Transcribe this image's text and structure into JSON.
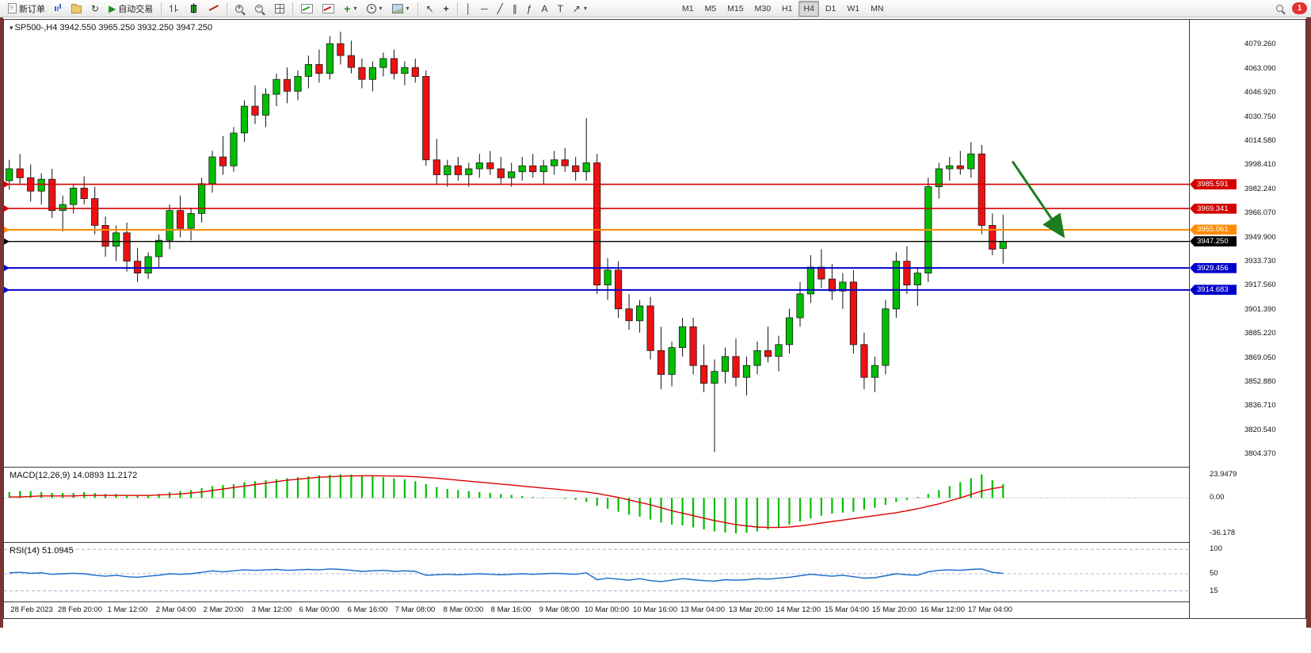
{
  "toolbar": {
    "new_order_label": "新订单",
    "auto_trading_label": "自动交易",
    "text_tool_label": "A",
    "label_tool_label": "T",
    "timeframes": [
      "M1",
      "M5",
      "M15",
      "M30",
      "H1",
      "H4",
      "D1",
      "W1",
      "MN"
    ],
    "active_timeframe": "H4",
    "notification_count": "1"
  },
  "chart_data": {
    "type": "candlestick",
    "title": "SP500-,H4 3942.550 3965.250 3932.250 3947.250",
    "symbol": "SP500-",
    "timeframe": "H4",
    "ohlc": {
      "open": 3942.55,
      "high": 3965.25,
      "low": 3932.25,
      "close": 3947.25
    },
    "up_color": "#00BE00",
    "down_color": "#EE1111",
    "price_axis": {
      "min": 3796,
      "max": 4096,
      "labels": [
        "4079.260",
        "4063.090",
        "4046.920",
        "4030.750",
        "4014.580",
        "3998.410",
        "3982.240",
        "3966.070",
        "3949.900",
        "3933.730",
        "3917.560",
        "3901.390",
        "3885.220",
        "3869.050",
        "3852.880",
        "3836.710",
        "3820.540",
        "3804.370"
      ]
    },
    "time_labels": [
      "28 Feb 2023",
      "28 Feb 20:00",
      "1 Mar 12:00",
      "2 Mar 04:00",
      "2 Mar 20:00",
      "3 Mar 12:00",
      "6 Mar 00:00",
      "6 Mar 16:00",
      "7 Mar 08:00",
      "8 Mar 00:00",
      "8 Mar 16:00",
      "9 Mar 08:00",
      "10 Mar 00:00",
      "10 Mar 16:00",
      "13 Mar 04:00",
      "13 Mar 20:00",
      "14 Mar 12:00",
      "15 Mar 04:00",
      "15 Mar 20:00",
      "16 Mar 12:00",
      "17 Mar 04:00"
    ],
    "candles": [
      [
        3988,
        4002,
        3982,
        3996
      ],
      [
        3996,
        4006,
        3986,
        3990
      ],
      [
        3990,
        3999,
        3974,
        3981
      ],
      [
        3981,
        3993,
        3972,
        3989
      ],
      [
        3989,
        3996,
        3963,
        3968
      ],
      [
        3968,
        3978,
        3954,
        3972
      ],
      [
        3972,
        3986,
        3966,
        3983
      ],
      [
        3983,
        3991,
        3972,
        3976
      ],
      [
        3976,
        3984,
        3952,
        3958
      ],
      [
        3958,
        3964,
        3937,
        3944
      ],
      [
        3944,
        3958,
        3934,
        3953
      ],
      [
        3953,
        3960,
        3927,
        3934
      ],
      [
        3934,
        3943,
        3920,
        3926
      ],
      [
        3926,
        3940,
        3922,
        3937
      ],
      [
        3937,
        3952,
        3930,
        3948
      ],
      [
        3948,
        3972,
        3942,
        3968
      ],
      [
        3968,
        3978,
        3950,
        3956
      ],
      [
        3956,
        3970,
        3948,
        3966
      ],
      [
        3966,
        3990,
        3960,
        3986
      ],
      [
        3986,
        4008,
        3980,
        4004
      ],
      [
        4004,
        4018,
        3992,
        3998
      ],
      [
        3998,
        4024,
        3994,
        4020
      ],
      [
        4020,
        4042,
        4014,
        4038
      ],
      [
        4038,
        4052,
        4026,
        4032
      ],
      [
        4032,
        4050,
        4024,
        4046
      ],
      [
        4046,
        4060,
        4038,
        4056
      ],
      [
        4056,
        4064,
        4040,
        4048
      ],
      [
        4048,
        4062,
        4042,
        4058
      ],
      [
        4058,
        4072,
        4050,
        4066
      ],
      [
        4066,
        4076,
        4054,
        4060
      ],
      [
        4060,
        4085,
        4056,
        4080
      ],
      [
        4080,
        4088,
        4066,
        4072
      ],
      [
        4072,
        4082,
        4060,
        4064
      ],
      [
        4064,
        4070,
        4050,
        4056
      ],
      [
        4056,
        4068,
        4048,
        4064
      ],
      [
        4064,
        4074,
        4058,
        4070
      ],
      [
        4070,
        4076,
        4056,
        4060
      ],
      [
        4060,
        4068,
        4052,
        4064
      ],
      [
        4064,
        4070,
        4054,
        4058
      ],
      [
        4058,
        4062,
        3998,
        4002
      ],
      [
        4002,
        4016,
        3986,
        3992
      ],
      [
        3992,
        4002,
        3984,
        3998
      ],
      [
        3998,
        4004,
        3988,
        3992
      ],
      [
        3992,
        4000,
        3984,
        3996
      ],
      [
        3996,
        4006,
        3990,
        4000
      ],
      [
        4000,
        4008,
        3992,
        3996
      ],
      [
        3996,
        4004,
        3986,
        3990
      ],
      [
        3990,
        4000,
        3984,
        3994
      ],
      [
        3994,
        4004,
        3988,
        3998
      ],
      [
        3998,
        4006,
        3990,
        3994
      ],
      [
        3994,
        4002,
        3986,
        3998
      ],
      [
        3998,
        4008,
        3992,
        4002
      ],
      [
        4002,
        4010,
        3994,
        3998
      ],
      [
        3998,
        4004,
        3988,
        3994
      ],
      [
        3994,
        4030,
        3988,
        4000
      ],
      [
        4000,
        4006,
        3912,
        3918
      ],
      [
        3918,
        3936,
        3908,
        3928
      ],
      [
        3928,
        3934,
        3896,
        3902
      ],
      [
        3902,
        3912,
        3888,
        3894
      ],
      [
        3894,
        3908,
        3886,
        3904
      ],
      [
        3904,
        3910,
        3868,
        3874
      ],
      [
        3874,
        3890,
        3848,
        3858
      ],
      [
        3858,
        3880,
        3850,
        3876
      ],
      [
        3876,
        3896,
        3870,
        3890
      ],
      [
        3890,
        3896,
        3858,
        3864
      ],
      [
        3864,
        3878,
        3846,
        3852
      ],
      [
        3852,
        3868,
        3806,
        3860
      ],
      [
        3860,
        3876,
        3852,
        3870
      ],
      [
        3870,
        3882,
        3850,
        3856
      ],
      [
        3856,
        3870,
        3844,
        3864
      ],
      [
        3864,
        3880,
        3858,
        3874
      ],
      [
        3874,
        3890,
        3866,
        3870
      ],
      [
        3870,
        3884,
        3860,
        3878
      ],
      [
        3878,
        3902,
        3872,
        3896
      ],
      [
        3896,
        3920,
        3890,
        3912
      ],
      [
        3912,
        3938,
        3906,
        3930
      ],
      [
        3930,
        3942,
        3916,
        3922
      ],
      [
        3922,
        3932,
        3908,
        3914
      ],
      [
        3914,
        3926,
        3902,
        3920
      ],
      [
        3920,
        3928,
        3872,
        3878
      ],
      [
        3878,
        3886,
        3848,
        3856
      ],
      [
        3856,
        3870,
        3846,
        3864
      ],
      [
        3864,
        3908,
        3858,
        3902
      ],
      [
        3902,
        3940,
        3896,
        3934
      ],
      [
        3934,
        3944,
        3912,
        3918
      ],
      [
        3918,
        3930,
        3904,
        3926
      ],
      [
        3926,
        3990,
        3920,
        3984
      ],
      [
        3984,
        4000,
        3976,
        3996
      ],
      [
        3996,
        4004,
        3988,
        3998
      ],
      [
        3998,
        4008,
        3992,
        3996
      ],
      [
        3996,
        4014,
        3990,
        4006
      ],
      [
        4006,
        4012,
        3952,
        3958
      ],
      [
        3958,
        3966,
        3938,
        3942
      ],
      [
        3942.55,
        3965.25,
        3932.25,
        3947.25
      ]
    ],
    "lines": [
      {
        "value": 3985.591,
        "tag": "3985.591",
        "color": "#D40000",
        "width": 1.6
      },
      {
        "value": 3969.341,
        "tag": "3969.341",
        "color": "#D40000",
        "width": 1.6
      },
      {
        "value": 3955.061,
        "tag": "3955.061",
        "color": "#FF8C00",
        "width": 2
      },
      {
        "value": 3947.25,
        "tag": "3947.250",
        "color": "#000000",
        "width": 1.4
      },
      {
        "value": 3929.456,
        "tag": "3929.456",
        "color": "#0000CC",
        "width": 2
      },
      {
        "value": 3914.683,
        "tag": "3914.683",
        "color": "#0000CC",
        "width": 2
      }
    ],
    "arrow": {
      "color": "#1E7D1E",
      "x1_frac": 0.851,
      "price1": 4001,
      "x2_frac": 0.893,
      "price2": 3952
    },
    "macd": {
      "label": "MACD(12,26,9) 14.0893 11.2172",
      "range": [
        -44,
        30
      ],
      "histogram_color": "#00BE00",
      "signal_color": "#E00000",
      "scale_labels": [
        {
          "text": "23.9479",
          "value": 23.9479
        },
        {
          "text": "0.00",
          "value": 0
        },
        {
          "text": "-36.178",
          "value": -36.178
        }
      ],
      "histogram": [
        6,
        7,
        7,
        6,
        5,
        5,
        5,
        6,
        5,
        4,
        4,
        3,
        3,
        3,
        4,
        6,
        7,
        8,
        10,
        12,
        13,
        14,
        16,
        17,
        18,
        19,
        20,
        21,
        22,
        23,
        23.5,
        24,
        23.9,
        23,
        22,
        21,
        20,
        19,
        17,
        14,
        11,
        9,
        8,
        7,
        6,
        5,
        4,
        3,
        2,
        1,
        0.5,
        0,
        -1,
        -2,
        -4,
        -8,
        -11,
        -14,
        -17,
        -19,
        -22,
        -25,
        -27,
        -28,
        -30,
        -32,
        -34,
        -35,
        -36,
        -35.5,
        -34,
        -32,
        -30,
        -27,
        -24,
        -21,
        -18,
        -16,
        -15,
        -14,
        -12,
        -10,
        -7,
        -4,
        -2,
        1,
        4,
        8,
        12,
        16,
        20,
        23.9,
        18,
        14.1
      ],
      "signal": [
        1,
        1,
        1.5,
        2,
        2,
        2,
        2,
        2.5,
        2.5,
        2.5,
        2.5,
        2.5,
        2.5,
        2.5,
        3,
        3.5,
        4,
        5,
        6,
        7.5,
        9,
        10.5,
        12,
        13.5,
        15,
        16.5,
        18,
        19,
        20,
        21,
        21.5,
        22,
        22.3,
        22.5,
        22.5,
        22.4,
        22.2,
        22,
        21.5,
        20.8,
        20,
        19,
        18,
        17,
        16,
        15,
        14,
        13,
        12,
        11,
        10,
        9,
        8,
        7,
        6,
        4.5,
        2.5,
        0.5,
        -2,
        -4.5,
        -7,
        -10,
        -13,
        -15.5,
        -18,
        -20.5,
        -23,
        -25,
        -27,
        -28.5,
        -29.5,
        -30,
        -30,
        -29.5,
        -28.5,
        -27,
        -25.5,
        -24,
        -22.5,
        -21,
        -19.5,
        -18,
        -16.5,
        -15,
        -13,
        -11,
        -8.5,
        -6,
        -3,
        0,
        3.5,
        7,
        9.5,
        11.22
      ]
    },
    "rsi": {
      "label": "RSI(14) 51.0945",
      "range": [
        -5,
        110
      ],
      "line_color": "#1569C7",
      "levels": [
        {
          "text": "100",
          "value": 100
        },
        {
          "text": "50",
          "value": 50
        },
        {
          "text": "15",
          "value": 15
        }
      ],
      "values": [
        52,
        53,
        51,
        52,
        49,
        50,
        51,
        50,
        47,
        45,
        47,
        44,
        43,
        45,
        47,
        50,
        49,
        50,
        53,
        56,
        54,
        56,
        58,
        57,
        58,
        59,
        57,
        58,
        59,
        58,
        60,
        59,
        57,
        55,
        56,
        57,
        55,
        56,
        55,
        47,
        48,
        49,
        48,
        49,
        50,
        49,
        48,
        49,
        50,
        49,
        50,
        51,
        50,
        49,
        52,
        38,
        41,
        39,
        37,
        40,
        36,
        34,
        37,
        40,
        38,
        36,
        35,
        38,
        37,
        38,
        40,
        39,
        41,
        43,
        46,
        49,
        47,
        45,
        47,
        44,
        41,
        42,
        46,
        50,
        48,
        47,
        54,
        57,
        58,
        57,
        59,
        60,
        53,
        51.09
      ]
    }
  }
}
